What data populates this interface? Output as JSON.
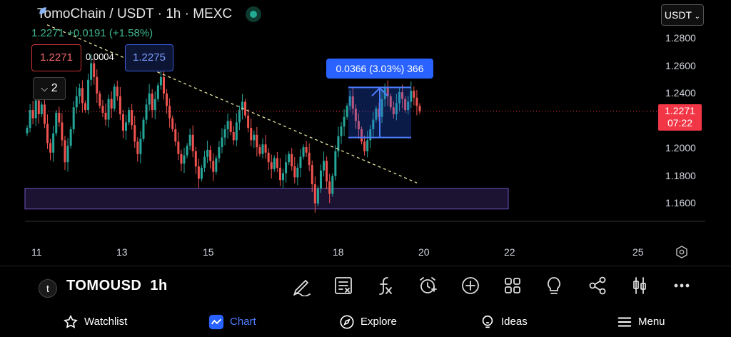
{
  "header": {
    "title": "TomoChain / USDT · 1h · MEXC",
    "price": "1.2271",
    "change": "+0.0191 (+1.58%)",
    "sell_price": "1.2271",
    "spread": "0.0004",
    "buy_price": "1.2275",
    "collapse_count": "2",
    "currency": "USDT"
  },
  "price_axis": {
    "ticks": [
      "1.2800",
      "1.2600",
      "1.2400",
      "1.2200",
      "1.2000",
      "1.1800",
      "1.1600"
    ],
    "current_price": "1.2271",
    "countdown": "07:22"
  },
  "time_axis": {
    "ticks": [
      "11",
      "13",
      "15",
      "18",
      "20",
      "22",
      "25"
    ]
  },
  "measure": {
    "label": "0.0366 (3.03%) 366"
  },
  "colors": {
    "up": "#26a69a",
    "down": "#ef5350",
    "accent": "#2962ff",
    "zone": "#2a1f52"
  },
  "toolbar": {
    "symbol": "TOMOUSD",
    "interval": "1h",
    "tools": [
      "draw-icon",
      "news-icon",
      "indicators-icon",
      "alert-icon",
      "add-icon",
      "layouts-icon",
      "ideas-bulb-icon",
      "share-icon",
      "chart-type-icon",
      "more-icon"
    ]
  },
  "nav": {
    "items": [
      "Watchlist",
      "Chart",
      "Explore",
      "Ideas",
      "Menu"
    ],
    "active": "Chart"
  },
  "chart_data": {
    "type": "candlestick",
    "x_ticks": [
      "11",
      "13",
      "15",
      "18",
      "20",
      "22",
      "25"
    ],
    "y_ticks": [
      1.28,
      1.26,
      1.24,
      1.22,
      1.2,
      1.18,
      1.16
    ],
    "ylim": [
      1.147,
      1.293
    ],
    "last_price": 1.2271,
    "trendline": {
      "from": [
        1.29,
        "10"
      ],
      "to": [
        1.175,
        "19.8"
      ]
    },
    "demand_zone": {
      "low": 1.156,
      "high": 1.171
    },
    "measure_range": {
      "low": 1.208,
      "high": 1.2445,
      "change": 0.0366,
      "percent": 3.03,
      "bars": 366
    },
    "closes": [
      1.215,
      1.228,
      1.222,
      1.235,
      1.225,
      1.232,
      1.218,
      1.204,
      1.197,
      1.211,
      1.226,
      1.219,
      1.206,
      1.19,
      1.202,
      1.214,
      1.23,
      1.238,
      1.244,
      1.233,
      1.228,
      1.25,
      1.262,
      1.252,
      1.24,
      1.231,
      1.226,
      1.221,
      1.236,
      1.229,
      1.245,
      1.238,
      1.225,
      1.213,
      1.219,
      1.228,
      1.217,
      1.205,
      1.196,
      1.207,
      1.221,
      1.232,
      1.24,
      1.228,
      1.236,
      1.246,
      1.252,
      1.24,
      1.231,
      1.222,
      1.214,
      1.205,
      1.196,
      1.189,
      1.195,
      1.202,
      1.21,
      1.198,
      1.187,
      1.178,
      1.186,
      1.194,
      1.199,
      1.191,
      1.183,
      1.193,
      1.201,
      1.208,
      1.214,
      1.22,
      1.212,
      1.206,
      1.219,
      1.228,
      1.234,
      1.224,
      1.215,
      1.206,
      1.21,
      1.201,
      1.196,
      1.203,
      1.197,
      1.19,
      1.185,
      1.193,
      1.186,
      1.177,
      1.182,
      1.19,
      1.196,
      1.187,
      1.179,
      1.186,
      1.194,
      1.201,
      1.197,
      1.188,
      1.174,
      1.16,
      1.171,
      1.184,
      1.191,
      1.176,
      1.167,
      1.18,
      1.198,
      1.209,
      1.216,
      1.223,
      1.231,
      1.238,
      1.229,
      1.22,
      1.214,
      1.205,
      1.198,
      1.206,
      1.214,
      1.221,
      1.229,
      1.223,
      1.236,
      1.244,
      1.238,
      1.23,
      1.225,
      1.233,
      1.241,
      1.236,
      1.228,
      1.234,
      1.242,
      1.237,
      1.231,
      1.227
    ]
  }
}
